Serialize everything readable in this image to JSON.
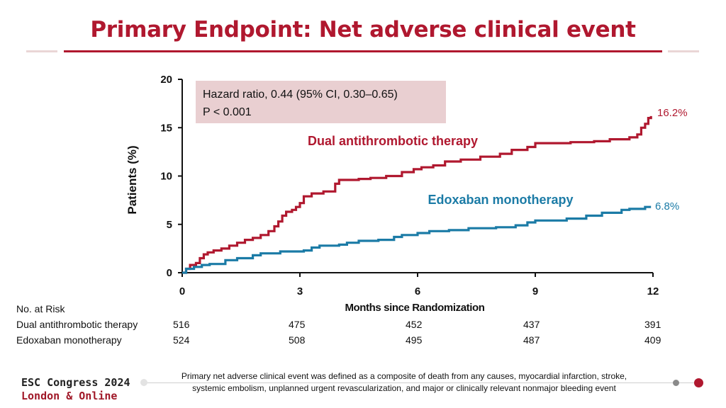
{
  "title": "Primary Endpoint: Net adverse clinical event",
  "annotation": {
    "line1": "Hazard ratio, 0.44 (95% CI, 0.30–0.65)",
    "line2": "P < 0.001"
  },
  "colors": {
    "title": "#b0182f",
    "dual": "#b0182f",
    "edox": "#1b7ba6",
    "annotation_bg": "#e9cfd1"
  },
  "chart_data": {
    "type": "line",
    "ylabel": "Patients (%)",
    "xlabel": "Months since Randomization",
    "xlim": [
      0,
      12
    ],
    "ylim": [
      0,
      20
    ],
    "xticks": [
      "0",
      "3",
      "6",
      "9",
      "12"
    ],
    "yticks": [
      "0",
      "5",
      "10",
      "15",
      "20"
    ],
    "grid": false,
    "step": true,
    "series": [
      {
        "name": "Dual antithrombotic therapy",
        "end_label": "16.2%",
        "points": [
          [
            0,
            0
          ],
          [
            0.1,
            0.4
          ],
          [
            0.2,
            0.8
          ],
          [
            0.35,
            1.0
          ],
          [
            0.45,
            1.5
          ],
          [
            0.55,
            1.9
          ],
          [
            0.65,
            2.1
          ],
          [
            0.8,
            2.3
          ],
          [
            1.0,
            2.5
          ],
          [
            1.2,
            2.8
          ],
          [
            1.4,
            3.1
          ],
          [
            1.6,
            3.4
          ],
          [
            1.8,
            3.6
          ],
          [
            2.0,
            3.9
          ],
          [
            2.2,
            4.3
          ],
          [
            2.35,
            4.8
          ],
          [
            2.45,
            5.3
          ],
          [
            2.55,
            5.9
          ],
          [
            2.65,
            6.3
          ],
          [
            2.8,
            6.5
          ],
          [
            2.9,
            6.8
          ],
          [
            3.0,
            7.2
          ],
          [
            3.1,
            7.9
          ],
          [
            3.3,
            8.2
          ],
          [
            3.6,
            8.4
          ],
          [
            3.9,
            9.2
          ],
          [
            4.0,
            9.6
          ],
          [
            4.5,
            9.7
          ],
          [
            4.8,
            9.8
          ],
          [
            5.2,
            10.0
          ],
          [
            5.6,
            10.4
          ],
          [
            5.9,
            10.7
          ],
          [
            6.1,
            10.9
          ],
          [
            6.4,
            11.1
          ],
          [
            6.7,
            11.5
          ],
          [
            7.1,
            11.7
          ],
          [
            7.6,
            12.0
          ],
          [
            8.1,
            12.3
          ],
          [
            8.4,
            12.7
          ],
          [
            8.8,
            13.0
          ],
          [
            9.0,
            13.4
          ],
          [
            9.3,
            13.4
          ],
          [
            9.9,
            13.5
          ],
          [
            10.5,
            13.6
          ],
          [
            10.9,
            13.8
          ],
          [
            11.4,
            14.0
          ],
          [
            11.6,
            14.3
          ],
          [
            11.7,
            15.0
          ],
          [
            11.8,
            15.4
          ],
          [
            11.88,
            16.0
          ],
          [
            11.95,
            16.2
          ]
        ]
      },
      {
        "name": "Edoxaban monotherapy",
        "end_label": "6.8%",
        "points": [
          [
            0,
            0
          ],
          [
            0.1,
            0.4
          ],
          [
            0.3,
            0.6
          ],
          [
            0.5,
            0.8
          ],
          [
            0.7,
            0.9
          ],
          [
            1.1,
            1.3
          ],
          [
            1.4,
            1.5
          ],
          [
            1.8,
            1.8
          ],
          [
            2.0,
            2.0
          ],
          [
            2.5,
            2.2
          ],
          [
            3.1,
            2.3
          ],
          [
            3.3,
            2.6
          ],
          [
            3.5,
            2.8
          ],
          [
            4.0,
            2.9
          ],
          [
            4.2,
            3.1
          ],
          [
            4.5,
            3.3
          ],
          [
            5.0,
            3.4
          ],
          [
            5.4,
            3.7
          ],
          [
            5.6,
            3.9
          ],
          [
            6.0,
            4.1
          ],
          [
            6.3,
            4.3
          ],
          [
            6.8,
            4.4
          ],
          [
            7.3,
            4.6
          ],
          [
            8.0,
            4.7
          ],
          [
            8.5,
            4.9
          ],
          [
            8.8,
            5.2
          ],
          [
            9.0,
            5.4
          ],
          [
            9.8,
            5.6
          ],
          [
            10.3,
            5.9
          ],
          [
            10.7,
            6.2
          ],
          [
            11.2,
            6.5
          ],
          [
            11.4,
            6.6
          ],
          [
            11.8,
            6.8
          ],
          [
            11.95,
            6.8
          ]
        ]
      }
    ]
  },
  "risk_table": {
    "header": "No. at Risk",
    "rows": [
      {
        "label": "Dual antithrombotic therapy",
        "values": [
          "516",
          "475",
          "452",
          "437",
          "391"
        ]
      },
      {
        "label": "Edoxaban monotherapy",
        "values": [
          "524",
          "508",
          "495",
          "487",
          "409"
        ]
      }
    ]
  },
  "footnote": {
    "line1": "Primary net adverse clinical event was defined as a composite of death from any causes, myocardial infarction, stroke,",
    "line2": "systemic embolism, unplanned urgent revascularization, and major or clinically relevant nonmajor bleeding event"
  },
  "brand": {
    "line1": "ESC Congress 2024",
    "line2": "London & Online"
  }
}
